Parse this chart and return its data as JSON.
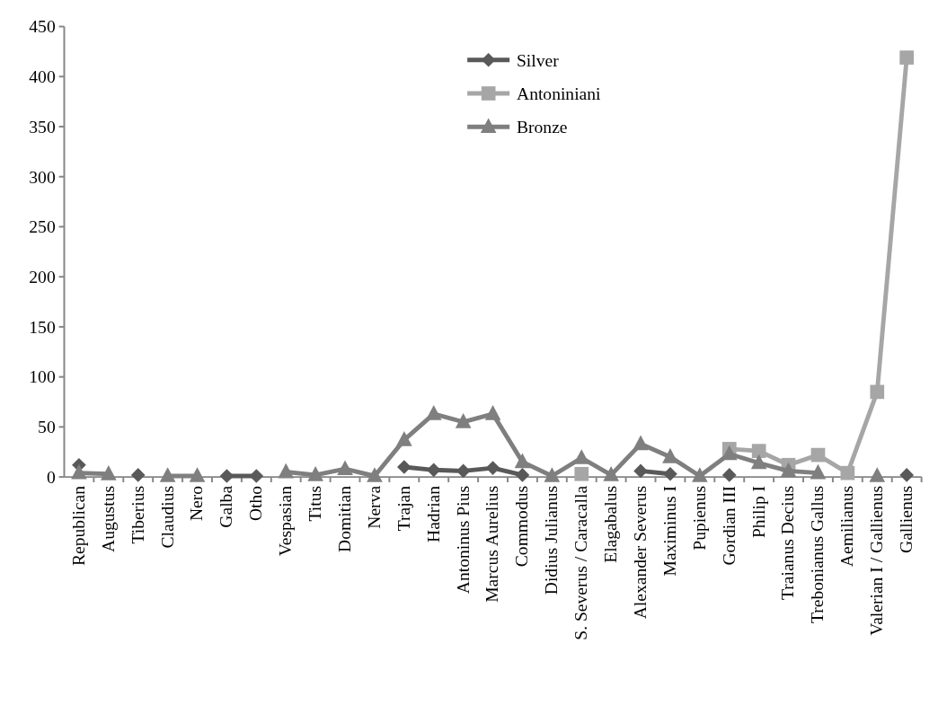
{
  "chart_data": {
    "type": "line",
    "categories": [
      "Republican",
      "Augustus",
      "Tiberius",
      "Claudius",
      "Nero",
      "Galba",
      "Otho",
      "Vespasian",
      "Titus",
      "Domitian",
      "Nerva",
      "Trajan",
      "Hadrian",
      "Antoninus Pius",
      "Marcus Aurelius",
      "Commodus",
      "Didius Julianus",
      "S. Severus / Caracalla",
      "Elagabalus",
      "Alexander Severus",
      "Maximinus I",
      "Pupienus",
      "Gordian III",
      "Philip I",
      "Traianus Decius",
      "Trebonianus Gallus",
      "Aemilianus",
      "Valerian I / Gallienus",
      "Gallienus"
    ],
    "series": [
      {
        "name": "Silver",
        "color": "#595959",
        "marker": "diamond",
        "values": [
          12,
          null,
          2,
          null,
          null,
          1,
          1,
          null,
          null,
          null,
          null,
          10,
          7,
          6,
          9,
          2,
          null,
          null,
          null,
          6,
          3,
          null,
          2,
          null,
          null,
          null,
          null,
          null,
          2
        ]
      },
      {
        "name": "Antoniniani",
        "color": "#a6a6a6",
        "marker": "square",
        "values": [
          null,
          null,
          null,
          null,
          null,
          null,
          null,
          null,
          null,
          null,
          null,
          null,
          null,
          null,
          null,
          null,
          null,
          3,
          null,
          null,
          null,
          null,
          28,
          26,
          12,
          22,
          4,
          85,
          419
        ]
      },
      {
        "name": "Bronze",
        "color": "#7f7f7f",
        "marker": "triangle",
        "values": [
          4,
          3,
          null,
          1,
          1,
          null,
          null,
          5,
          2,
          8,
          1,
          37,
          63,
          55,
          63,
          15,
          1,
          19,
          2,
          33,
          20,
          1,
          23,
          14,
          6,
          4,
          null,
          1,
          null
        ]
      }
    ],
    "ylim": [
      0,
      450
    ],
    "yticks": [
      0,
      50,
      100,
      150,
      200,
      250,
      300,
      350,
      400,
      450
    ],
    "grid": false,
    "legend": "top"
  }
}
